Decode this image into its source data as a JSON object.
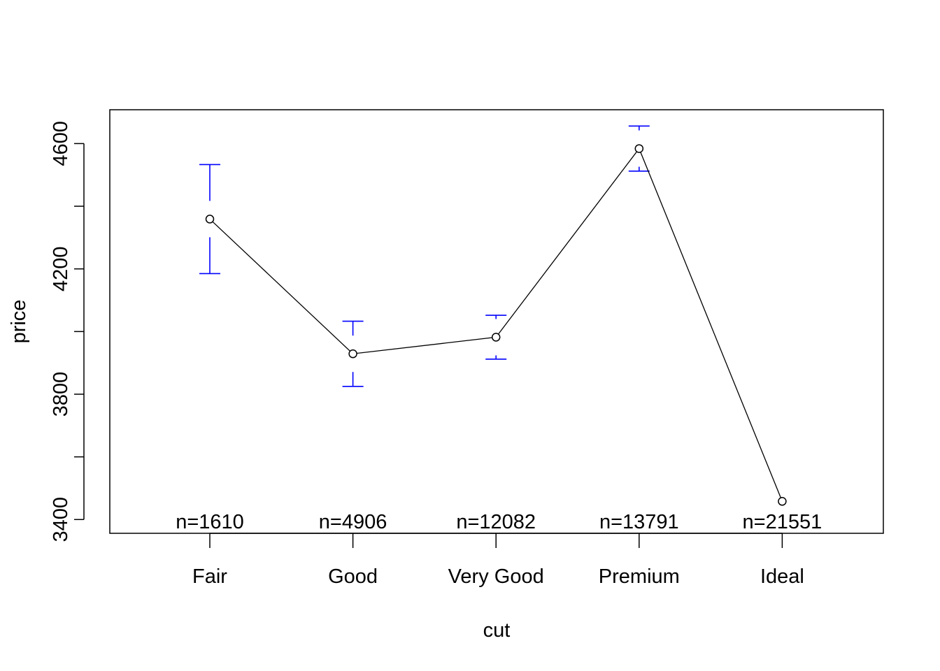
{
  "chart_data": {
    "type": "line",
    "xlabel": "cut",
    "ylabel": "price",
    "categories": [
      "Fair",
      "Good",
      "Very Good",
      "Premium",
      "Ideal"
    ],
    "series": [
      {
        "values": [
          4359,
          3929,
          3982,
          4584,
          3458
        ],
        "error_lower": [
          4185,
          3825,
          3912,
          4512,
          3456
        ],
        "error_upper": [
          4533,
          4033,
          4052,
          4656,
          3460
        ]
      }
    ],
    "counts": [
      "n=1610",
      "n=4906",
      "n=12082",
      "n=13791",
      "n=21551"
    ],
    "ylim": [
      3356,
      4708
    ],
    "yticks": [
      "3400",
      "3800",
      "4200",
      "4600"
    ],
    "y_minor_ticks": [
      3400,
      3600,
      3800,
      4000,
      4200,
      4400,
      4600
    ],
    "colors": {
      "line": "#000000",
      "error_bars": "#0000ff"
    },
    "grid": false
  }
}
